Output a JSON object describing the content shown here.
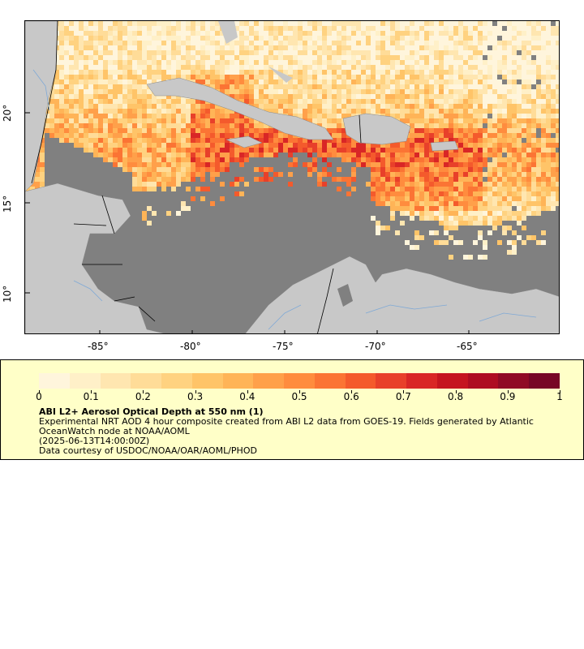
{
  "map": {
    "x_ticks": [
      "-85°",
      "-80°",
      "-75°",
      "-70°",
      "-65°"
    ],
    "y_ticks": [
      "20°",
      "15°",
      "10°"
    ],
    "colors": {
      "ocean": "#808080",
      "land": "#c8c8c8",
      "border": "#000000",
      "river": "#7fa9d6"
    }
  },
  "legend": {
    "title": "ABI L2+ Aerosol Optical Depth at 550 nm (1)",
    "description": "Experimental NRT AOD 4 hour composite created from ABI L2 data from GOES-19. Fields generated by Atlantic OceanWatch node at NOAA/AOML",
    "timestamp": "(2025-06-13T14:00:00Z)",
    "credit": "Data courtesy of USDOC/NOAA/OAR/AOML/PHOD",
    "colorbar_ticks": [
      "0",
      "0.1",
      "0.2",
      "0.3",
      "0.4",
      "0.5",
      "0.6",
      "0.7",
      "0.8",
      "0.9",
      "1"
    ],
    "colorbar_colors": [
      "#fff5dc",
      "#fff0c8",
      "#ffe6b0",
      "#ffdc98",
      "#ffd280",
      "#ffc468",
      "#ffb457",
      "#ffa04a",
      "#ff8c3e",
      "#fb7434",
      "#f45a2c",
      "#e8402a",
      "#d92626",
      "#c51420",
      "#ae0c22",
      "#900a25",
      "#770626"
    ]
  }
}
